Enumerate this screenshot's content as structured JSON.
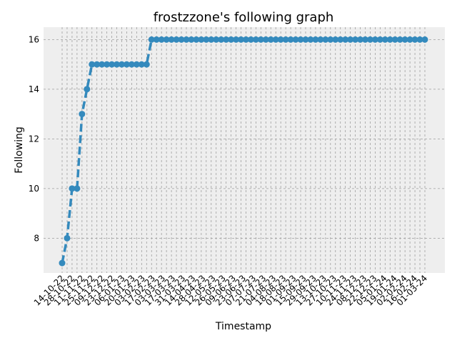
{
  "chart_data": {
    "type": "line",
    "title": "frostzzone's following graph",
    "xlabel": "Timestamp",
    "ylabel": "Following",
    "ylim": [
      6.6,
      16.5
    ],
    "yticks": [
      8,
      10,
      12,
      14,
      16
    ],
    "grid": true,
    "series_color": "#348abd",
    "background_color": "#eeeeee",
    "x_tick_labels": [
      "14-10-22",
      "28-10-22",
      "11-11-22",
      "25-11-22",
      "09-12-22",
      "23-12-22",
      "06-01-23",
      "20-01-23",
      "03-02-23",
      "17-02-23",
      "03-03-23",
      "17-03-23",
      "31-03-23",
      "14-04-23",
      "28-04-23",
      "12-05-23",
      "26-05-23",
      "09-06-23",
      "23-06-23",
      "07-07-23",
      "21-07-23",
      "04-08-23",
      "18-08-23",
      "01-09-23",
      "15-09-23",
      "29-09-23",
      "13-10-23",
      "27-10-23",
      "10-11-23",
      "24-11-23",
      "08-12-23",
      "22-12-23",
      "05-01-24",
      "19-01-24",
      "02-02-24",
      "16-02-24",
      "01-03-24"
    ],
    "series": [
      {
        "values": [
          7,
          8,
          10,
          10,
          13,
          14,
          15,
          15,
          15,
          15,
          15,
          15,
          15,
          15,
          15,
          15,
          15,
          15,
          16,
          16,
          16,
          16,
          16,
          16,
          16,
          16,
          16,
          16,
          16,
          16,
          16,
          16,
          16,
          16,
          16,
          16,
          16,
          16,
          16,
          16,
          16,
          16,
          16,
          16,
          16,
          16,
          16,
          16,
          16,
          16,
          16,
          16,
          16,
          16,
          16,
          16,
          16,
          16,
          16,
          16,
          16,
          16,
          16,
          16,
          16,
          16,
          16,
          16,
          16,
          16,
          16,
          16,
          16,
          16
        ]
      }
    ]
  }
}
